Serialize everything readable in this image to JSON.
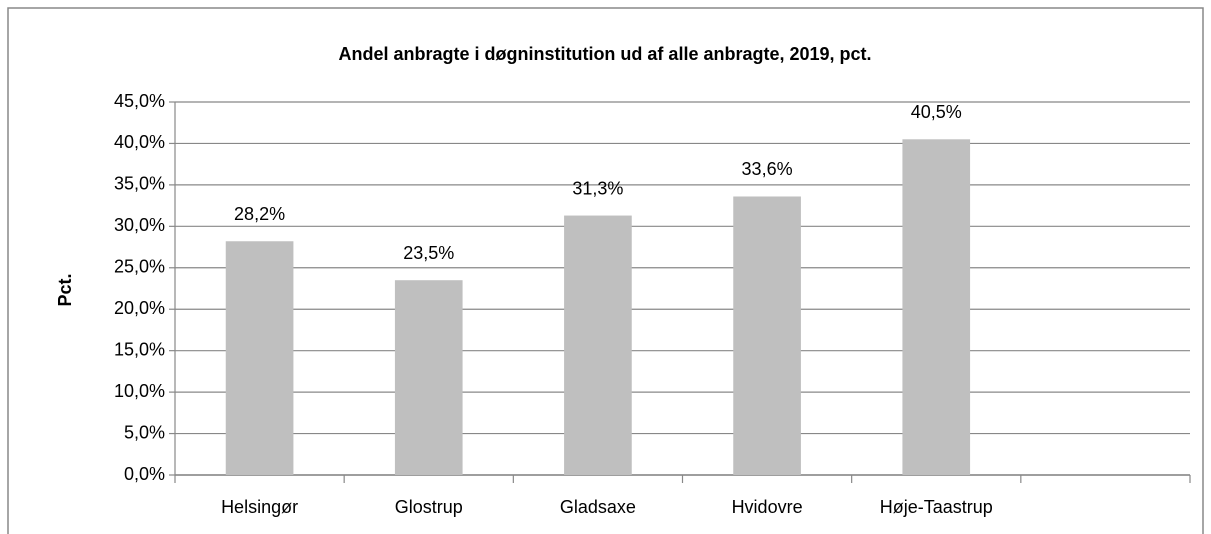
{
  "chart_data": {
    "type": "bar",
    "title": "Andel anbragte i døgninstitution ud af alle anbragte, 2019, pct.",
    "y_label": "Pct.",
    "categories": [
      "Helsingør",
      "Glostrup",
      "Gladsaxe",
      "Hvidovre",
      "Høje-Taastrup",
      null
    ],
    "values": [
      28.2,
      23.5,
      31.3,
      33.6,
      40.5,
      null
    ],
    "value_labels": [
      "28,2%",
      "23,5%",
      "31,3%",
      "33,6%",
      "40,5%",
      null
    ],
    "color": "#bfbfbf",
    "ylim": [
      0,
      45
    ],
    "yticks": [
      {
        "value": 0,
        "label": "0,0%"
      },
      {
        "value": 5,
        "label": "5,0%"
      },
      {
        "value": 10,
        "label": "10,0%"
      },
      {
        "value": 15,
        "label": "15,0%"
      },
      {
        "value": 20,
        "label": "20,0%"
      },
      {
        "value": 25,
        "label": "25,0%"
      },
      {
        "value": 30,
        "label": "30,0%"
      },
      {
        "value": 35,
        "label": "35,0%"
      },
      {
        "value": 40,
        "label": "40,0%"
      },
      {
        "value": 45,
        "label": "45,0%"
      }
    ],
    "grid": true
  }
}
